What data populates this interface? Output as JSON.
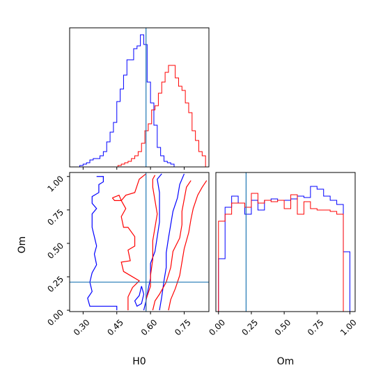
{
  "chart_data": [
    {
      "type": "histogram",
      "panel": "H0 marginal",
      "xlim": [
        0.24,
        0.86
      ],
      "ylim": [
        0,
        1.0
      ],
      "truth_line": 0.58,
      "series": [
        {
          "color": "#0000ff",
          "bins": [
            0.27,
            0.285,
            0.3,
            0.315,
            0.33,
            0.345,
            0.36,
            0.375,
            0.39,
            0.405,
            0.42,
            0.435,
            0.45,
            0.465,
            0.48,
            0.495,
            0.51,
            0.525,
            0.54,
            0.555,
            0.57,
            0.585,
            0.6,
            0.615,
            0.63,
            0.645,
            0.66,
            0.675,
            0.69,
            0.705
          ],
          "values": [
            0.0,
            0.01,
            0.02,
            0.03,
            0.05,
            0.06,
            0.06,
            0.08,
            0.11,
            0.18,
            0.25,
            0.32,
            0.47,
            0.56,
            0.66,
            0.77,
            0.77,
            0.85,
            0.87,
            0.95,
            0.88,
            0.61,
            0.46,
            0.3,
            0.14,
            0.08,
            0.04,
            0.03,
            0.02,
            0.0
          ]
        },
        {
          "color": "#ff0000",
          "bins": [
            0.44,
            0.455,
            0.47,
            0.485,
            0.5,
            0.515,
            0.53,
            0.545,
            0.56,
            0.575,
            0.59,
            0.605,
            0.62,
            0.635,
            0.65,
            0.665,
            0.68,
            0.695,
            0.71,
            0.725,
            0.74,
            0.755,
            0.77,
            0.785,
            0.8,
            0.815,
            0.83,
            0.845
          ],
          "values": [
            0.0,
            0.01,
            0.02,
            0.03,
            0.04,
            0.06,
            0.08,
            0.11,
            0.17,
            0.26,
            0.31,
            0.41,
            0.44,
            0.53,
            0.61,
            0.68,
            0.73,
            0.73,
            0.64,
            0.58,
            0.55,
            0.46,
            0.39,
            0.26,
            0.19,
            0.11,
            0.08,
            0.0
          ]
        }
      ]
    },
    {
      "type": "contour",
      "panel": "H0 vs Om joint",
      "xlabel": "H0",
      "ylabel": "Om",
      "xlim": [
        0.24,
        0.86
      ],
      "ylim": [
        -0.01,
        1.03
      ],
      "xticks": [
        "0.30",
        "0.45",
        "0.60",
        "0.75"
      ],
      "yticks": [
        "0.00",
        "0.25",
        "0.50",
        "0.75",
        "1.00"
      ],
      "truth_x": 0.58,
      "truth_y": 0.21,
      "series": [
        {
          "color": "#0000ff",
          "contours": [
            [
              [
                0.36,
                1.0
              ],
              [
                0.39,
                1.0
              ],
              [
                0.39,
                0.96
              ],
              [
                0.37,
                0.94
              ],
              [
                0.37,
                0.88
              ],
              [
                0.34,
                0.85
              ],
              [
                0.34,
                0.8
              ],
              [
                0.36,
                0.76
              ],
              [
                0.34,
                0.72
              ],
              [
                0.34,
                0.62
              ],
              [
                0.35,
                0.55
              ],
              [
                0.36,
                0.48
              ],
              [
                0.35,
                0.42
              ],
              [
                0.36,
                0.34
              ],
              [
                0.34,
                0.28
              ],
              [
                0.33,
                0.21
              ],
              [
                0.34,
                0.14
              ],
              [
                0.32,
                0.09
              ],
              [
                0.33,
                0.03
              ],
              [
                0.45,
                0.03
              ],
              [
                0.45,
                0.0
              ]
            ],
            [
              [
                0.56,
                0.18
              ],
              [
                0.55,
                0.11
              ],
              [
                0.53,
                0.07
              ],
              [
                0.54,
                0.03
              ],
              [
                0.56,
                0.05
              ],
              [
                0.57,
                0.12
              ],
              [
                0.56,
                0.18
              ]
            ],
            [
              [
                0.57,
                0.0
              ],
              [
                0.58,
                0.07
              ],
              [
                0.59,
                0.16
              ],
              [
                0.6,
                0.24
              ],
              [
                0.6,
                0.35
              ],
              [
                0.62,
                0.44
              ],
              [
                0.63,
                0.55
              ],
              [
                0.64,
                0.66
              ],
              [
                0.64,
                0.77
              ],
              [
                0.64,
                0.88
              ],
              [
                0.63,
                0.98
              ],
              [
                0.65,
                1.02
              ]
            ],
            [
              [
                0.64,
                0.0
              ],
              [
                0.65,
                0.1
              ],
              [
                0.66,
                0.22
              ],
              [
                0.67,
                0.32
              ],
              [
                0.67,
                0.43
              ],
              [
                0.68,
                0.54
              ],
              [
                0.69,
                0.64
              ],
              [
                0.7,
                0.74
              ],
              [
                0.72,
                0.84
              ],
              [
                0.73,
                0.94
              ],
              [
                0.75,
                1.02
              ]
            ]
          ]
        },
        {
          "color": "#ff0000",
          "contours": [
            [
              [
                0.5,
                0.0
              ],
              [
                0.5,
                0.1
              ],
              [
                0.52,
                0.17
              ],
              [
                0.55,
                0.22
              ],
              [
                0.51,
                0.26
              ],
              [
                0.48,
                0.29
              ],
              [
                0.47,
                0.36
              ],
              [
                0.51,
                0.37
              ],
              [
                0.5,
                0.45
              ],
              [
                0.53,
                0.48
              ],
              [
                0.53,
                0.55
              ],
              [
                0.5,
                0.62
              ],
              [
                0.48,
                0.62
              ],
              [
                0.47,
                0.7
              ],
              [
                0.49,
                0.76
              ],
              [
                0.47,
                0.82
              ],
              [
                0.49,
                0.86
              ],
              [
                0.53,
                0.88
              ],
              [
                0.54,
                0.93
              ],
              [
                0.55,
                0.98
              ],
              [
                0.58,
                1.02
              ]
            ],
            [
              [
                0.58,
                0.0
              ],
              [
                0.58,
                0.08
              ],
              [
                0.6,
                0.18
              ],
              [
                0.6,
                0.26
              ],
              [
                0.61,
                0.38
              ],
              [
                0.61,
                0.52
              ],
              [
                0.62,
                0.62
              ],
              [
                0.63,
                0.72
              ],
              [
                0.62,
                0.82
              ],
              [
                0.61,
                0.92
              ],
              [
                0.61,
                0.98
              ],
              [
                0.62,
                1.01
              ]
            ],
            [
              [
                0.61,
                0.0
              ],
              [
                0.62,
                0.07
              ],
              [
                0.64,
                0.12
              ],
              [
                0.67,
                0.21
              ],
              [
                0.69,
                0.32
              ],
              [
                0.7,
                0.44
              ],
              [
                0.73,
                0.54
              ],
              [
                0.74,
                0.64
              ],
              [
                0.74,
                0.74
              ],
              [
                0.75,
                0.83
              ],
              [
                0.76,
                0.92
              ],
              [
                0.78,
                0.97
              ]
            ],
            [
              [
                0.68,
                0.0
              ],
              [
                0.69,
                0.08
              ],
              [
                0.71,
                0.16
              ],
              [
                0.73,
                0.26
              ],
              [
                0.74,
                0.36
              ],
              [
                0.75,
                0.46
              ],
              [
                0.77,
                0.58
              ],
              [
                0.78,
                0.68
              ],
              [
                0.79,
                0.76
              ],
              [
                0.81,
                0.86
              ],
              [
                0.83,
                0.92
              ],
              [
                0.85,
                0.97
              ]
            ],
            [
              [
                0.43,
                0.84
              ],
              [
                0.46,
                0.86
              ],
              [
                0.47,
                0.82
              ],
              [
                0.44,
                0.82
              ],
              [
                0.43,
                0.84
              ]
            ]
          ]
        }
      ]
    },
    {
      "type": "histogram",
      "panel": "Om marginal",
      "xlabel": "Om",
      "xlim": [
        -0.02,
        1.04
      ],
      "ylim": [
        0,
        1.0
      ],
      "xticks": [
        "0.00",
        "0.25",
        "0.50",
        "0.75",
        "1.00"
      ],
      "truth_line": 0.21,
      "series": [
        {
          "color": "#0000ff",
          "bins": [
            0.0,
            0.05,
            0.1,
            0.15,
            0.2,
            0.25,
            0.3,
            0.35,
            0.4,
            0.45,
            0.5,
            0.55,
            0.6,
            0.65,
            0.7,
            0.75,
            0.8,
            0.85,
            0.9,
            0.95
          ],
          "values": [
            0.38,
            0.75,
            0.83,
            0.78,
            0.7,
            0.8,
            0.73,
            0.8,
            0.81,
            0.8,
            0.8,
            0.81,
            0.83,
            0.82,
            0.9,
            0.88,
            0.83,
            0.8,
            0.77,
            0.43
          ]
        },
        {
          "color": "#ff0000",
          "bins": [
            0.0,
            0.05,
            0.1,
            0.15,
            0.2,
            0.25,
            0.3,
            0.35,
            0.4,
            0.45,
            0.5,
            0.55,
            0.6,
            0.65,
            0.7,
            0.75,
            0.8,
            0.85,
            0.9,
            0.95
          ],
          "values": [
            0.65,
            0.7,
            0.78,
            0.78,
            0.75,
            0.85,
            0.78,
            0.8,
            0.79,
            0.8,
            0.74,
            0.84,
            0.7,
            0.79,
            0.74,
            0.73,
            0.73,
            0.72,
            0.7,
            0.0
          ]
        }
      ]
    }
  ]
}
